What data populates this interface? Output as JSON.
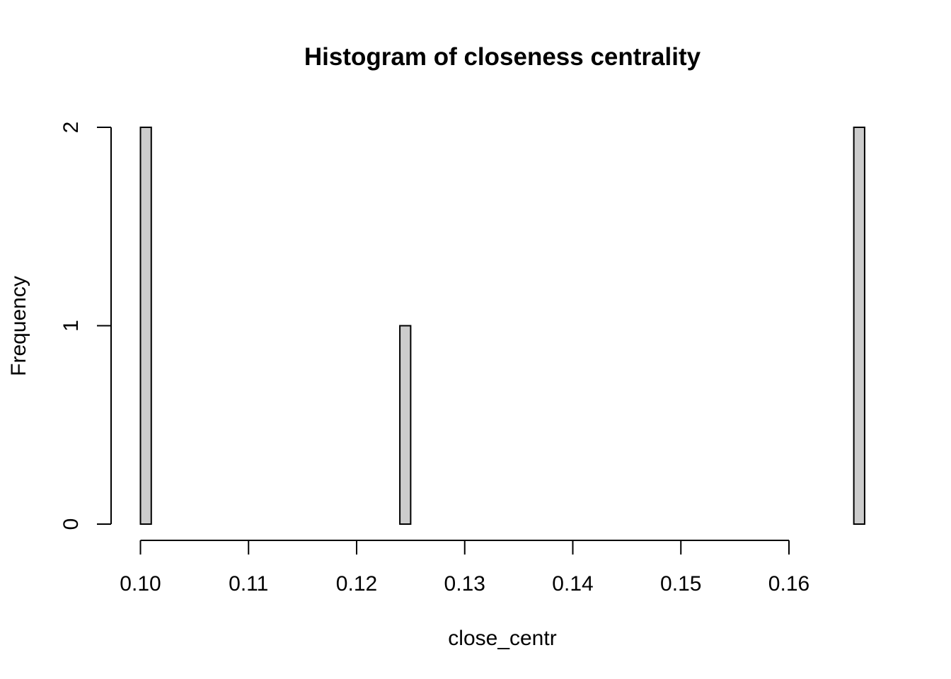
{
  "chart_data": {
    "type": "bar",
    "title": "Histogram of closeness centrality",
    "xlabel": "close_centr",
    "ylabel": "Frequency",
    "bar_color": "#cccccc",
    "border_color": "#000000",
    "background": "#ffffff",
    "grid": false,
    "legend": "none",
    "bin_width": 0.001,
    "bin_start": 0.1,
    "bin_end": 0.167,
    "nonzero_bins": [
      {
        "x_left": 0.1,
        "x_right": 0.101,
        "count": 2
      },
      {
        "x_left": 0.124,
        "x_right": 0.125,
        "count": 1
      },
      {
        "x_left": 0.166,
        "x_right": 0.167,
        "count": 2
      }
    ],
    "xlim": [
      0.1,
      0.167
    ],
    "ylim": [
      0,
      2
    ],
    "x_axis_range": [
      0.1,
      0.16
    ],
    "x_ticks": [
      0.1,
      0.11,
      0.12,
      0.13,
      0.14,
      0.15,
      0.16
    ],
    "x_tick_labels": [
      "0.10",
      "0.11",
      "0.12",
      "0.13",
      "0.14",
      "0.15",
      "0.16"
    ],
    "y_ticks": [
      0,
      1,
      2
    ],
    "y_tick_labels": [
      "0",
      "1",
      "2"
    ]
  }
}
